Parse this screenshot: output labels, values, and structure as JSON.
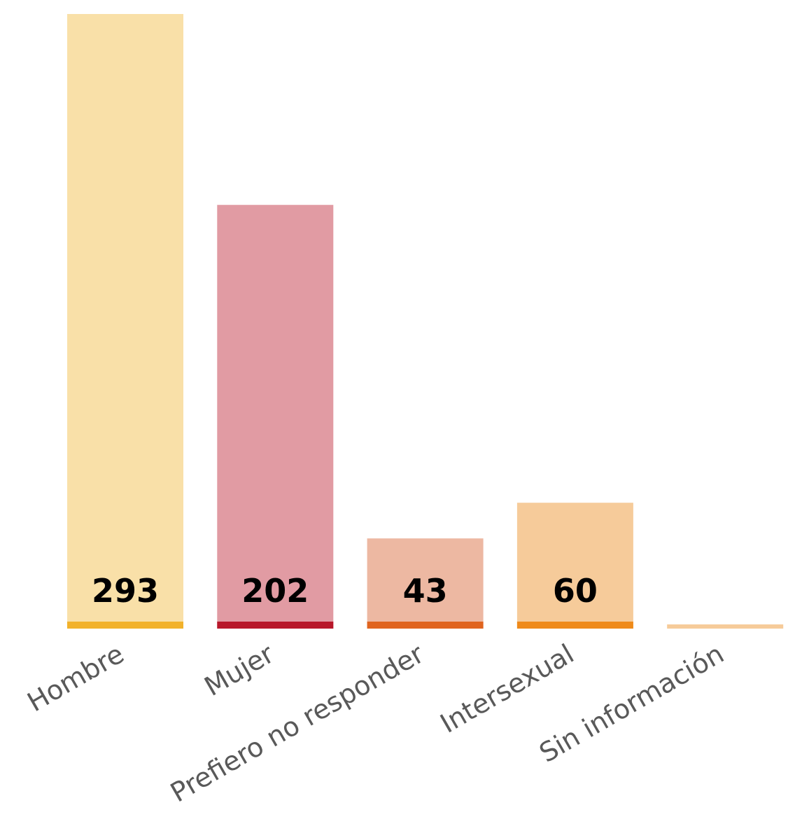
{
  "chart_data": {
    "type": "bar",
    "title": "",
    "xlabel": "",
    "ylabel": "",
    "categories": [
      "Hombre",
      "Mujer",
      "Prefiero no responder",
      "Intersexual",
      "Sin información"
    ],
    "values": [
      293,
      202,
      43,
      60,
      0
    ],
    "value_labels": [
      "293",
      "202",
      "43",
      "60",
      ""
    ],
    "ylim": [
      0,
      293
    ],
    "grid": false,
    "legend": "none",
    "colors": {
      "fill": [
        "#F9E0A8",
        "#E19BA3",
        "#EDB8A2",
        "#F6CB9A",
        "#F6CB9A"
      ],
      "base": [
        "#F2B22B",
        "#B8172A",
        "#E0641F",
        "#EF8A1A",
        "#F6CB9A"
      ]
    }
  }
}
